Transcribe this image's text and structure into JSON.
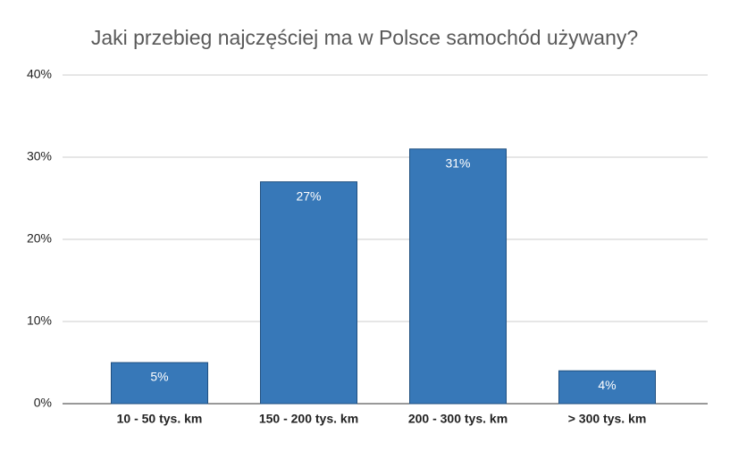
{
  "chart_data": {
    "type": "bar",
    "title": "Jaki przebieg najczęściej ma w Polsce samochód używany?",
    "categories": [
      "10 - 50 tys. km",
      "150 - 200 tys. km",
      "200 - 300 tys. km",
      "> 300 tys. km"
    ],
    "values": [
      5,
      27,
      31,
      4
    ],
    "value_labels": [
      "5%",
      "27%",
      "31%",
      "4%"
    ],
    "color": "#3778b8",
    "ylim": [
      0,
      40
    ],
    "yticks": [
      {
        "value": 0,
        "label": "0%"
      },
      {
        "value": 10,
        "label": "10%"
      },
      {
        "value": 20,
        "label": "20%"
      },
      {
        "value": 30,
        "label": "30%"
      },
      {
        "value": 40,
        "label": "40%"
      }
    ],
    "grid": true
  }
}
